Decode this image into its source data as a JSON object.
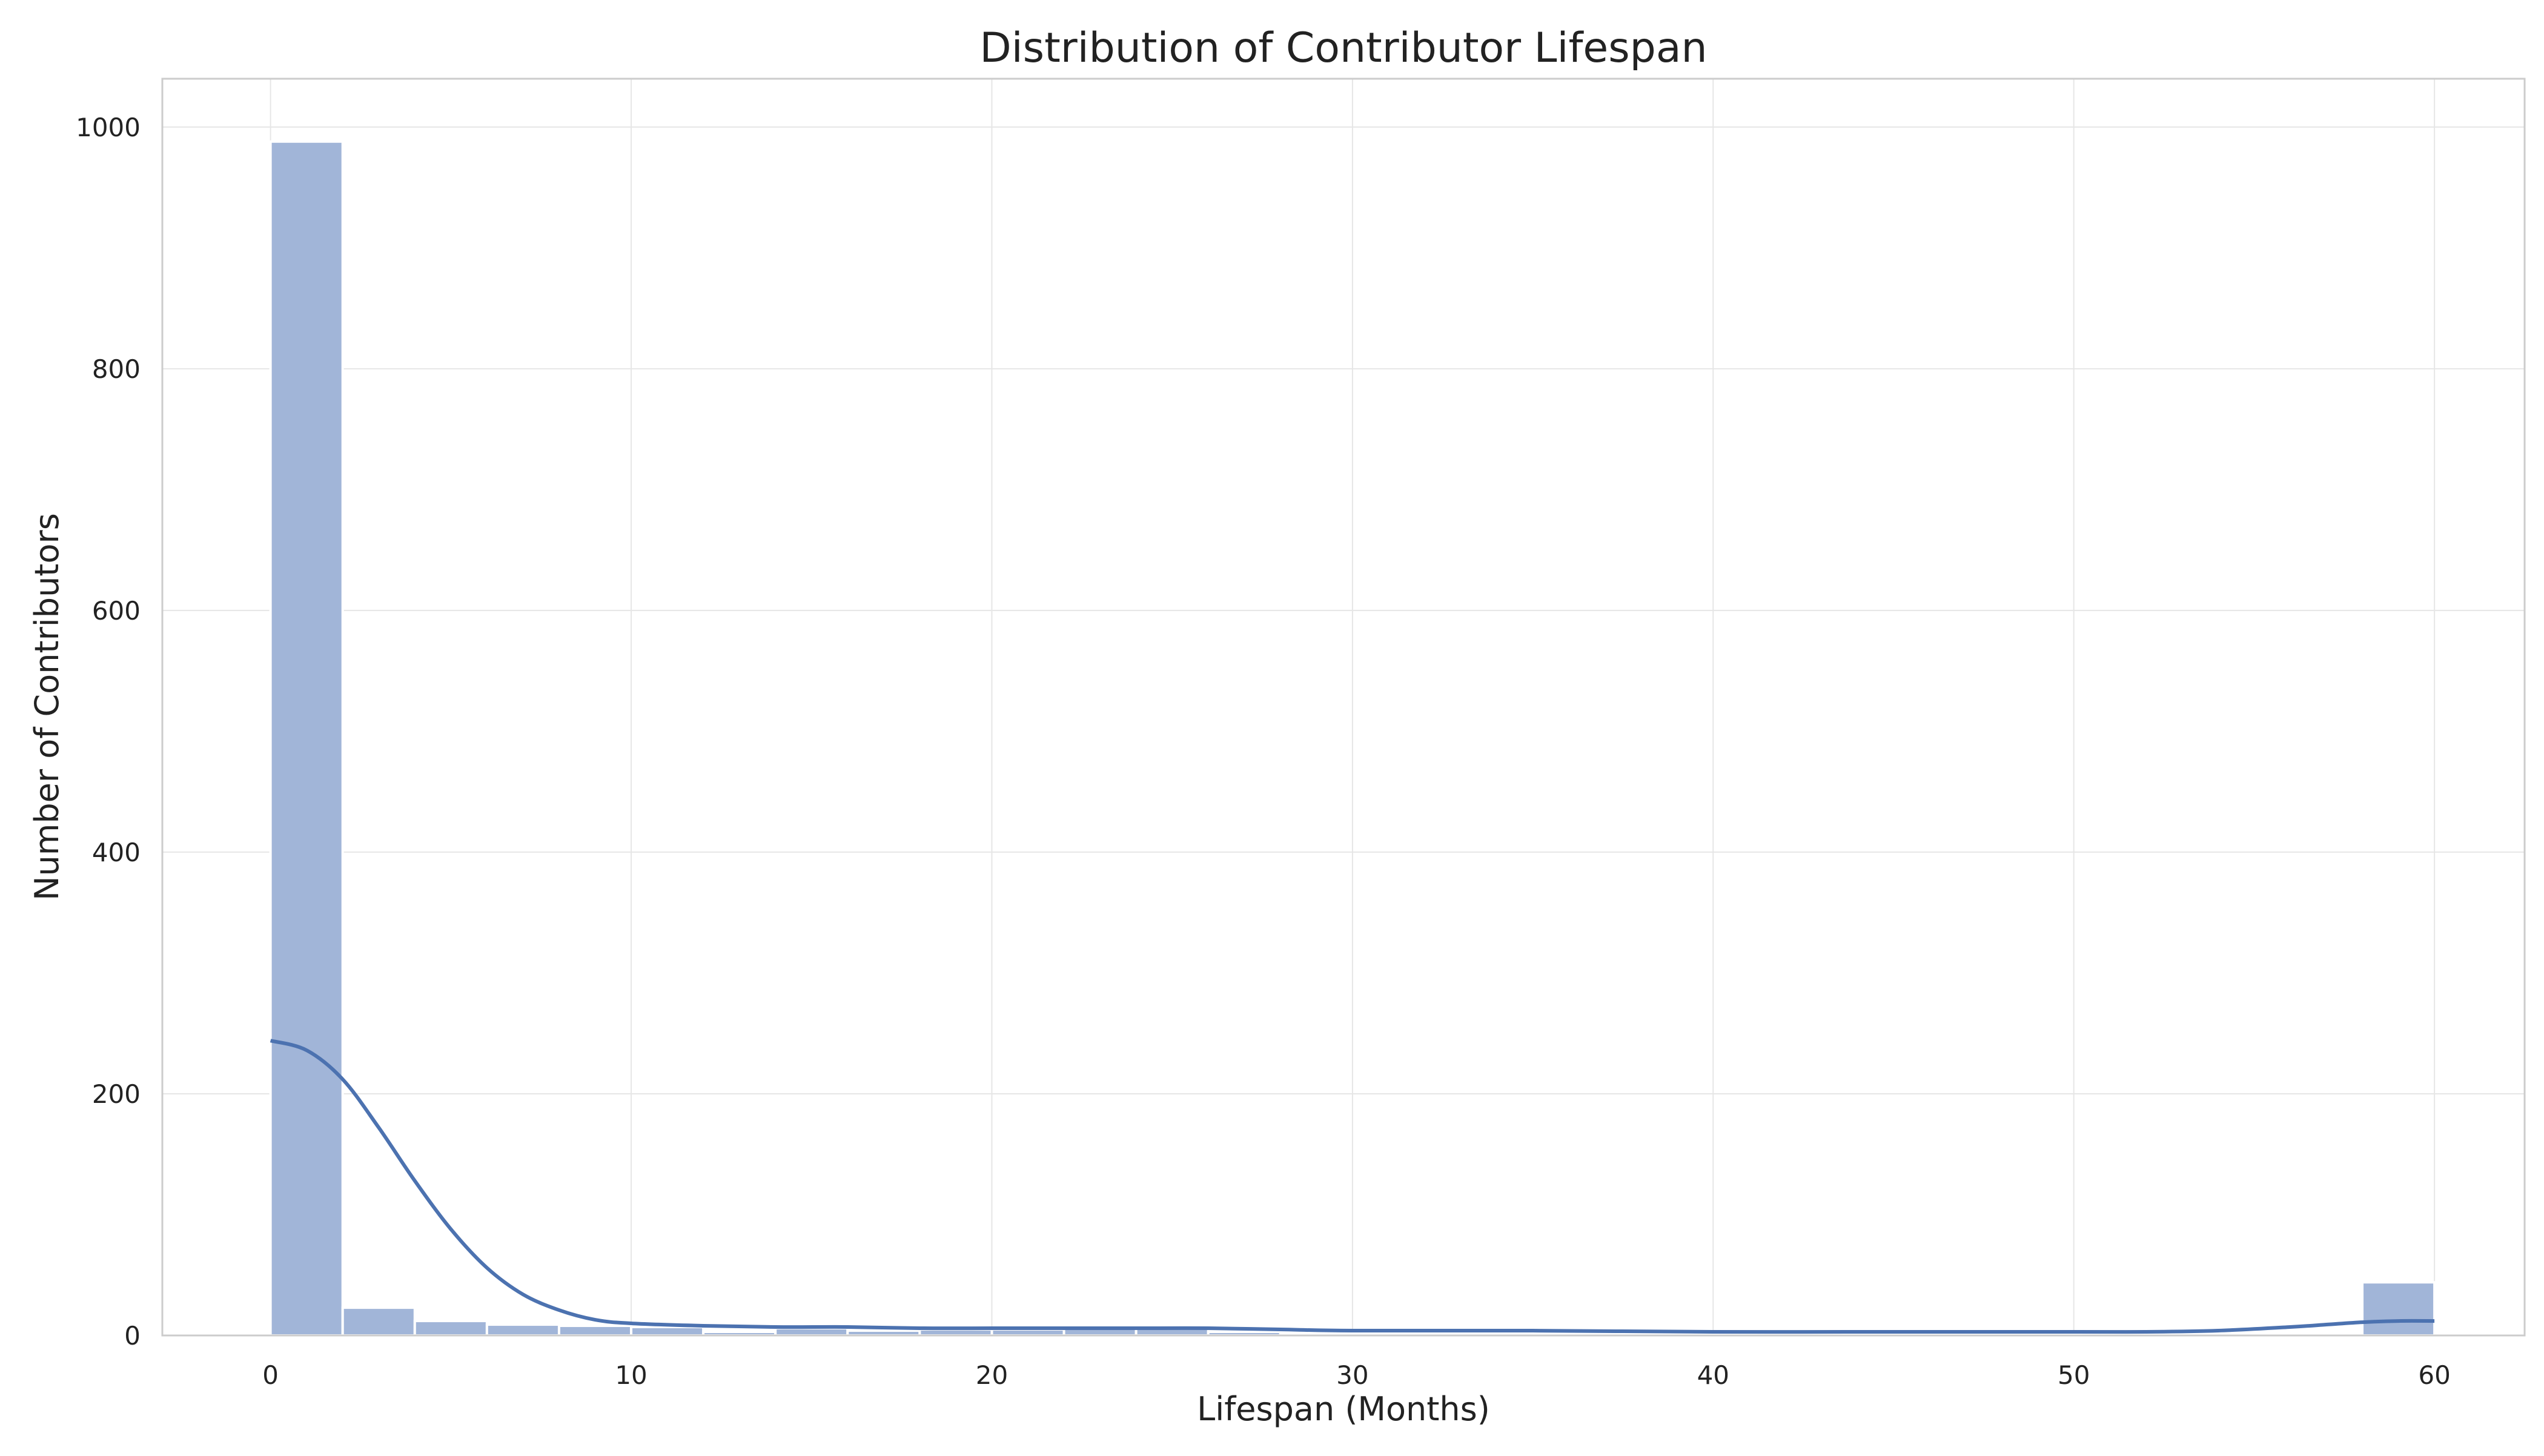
{
  "chart_data": {
    "type": "bar",
    "title": "Distribution of Contributor Lifespan",
    "xlabel": "Lifespan (Months)",
    "ylabel": "Number of Contributors",
    "xlim": [
      -3,
      62.5
    ],
    "ylim": [
      0,
      1040
    ],
    "x_ticks": [
      0,
      10,
      20,
      30,
      40,
      50,
      60
    ],
    "y_ticks": [
      0,
      200,
      400,
      600,
      800,
      1000
    ],
    "grid": true,
    "legend": "none",
    "bar_color": "#a1b5d8",
    "bar_edge_color": "#ffffff",
    "kde_color": "#4c72b0",
    "bins": [
      {
        "x0": 0,
        "x1": 2,
        "count": 988
      },
      {
        "x0": 2,
        "x1": 4,
        "count": 23
      },
      {
        "x0": 4,
        "x1": 6,
        "count": 12
      },
      {
        "x0": 6,
        "x1": 8,
        "count": 9
      },
      {
        "x0": 8,
        "x1": 10,
        "count": 8
      },
      {
        "x0": 10,
        "x1": 12,
        "count": 7
      },
      {
        "x0": 12,
        "x1": 14,
        "count": 3
      },
      {
        "x0": 14,
        "x1": 16,
        "count": 6
      },
      {
        "x0": 16,
        "x1": 18,
        "count": 4
      },
      {
        "x0": 18,
        "x1": 20,
        "count": 5
      },
      {
        "x0": 20,
        "x1": 22,
        "count": 5
      },
      {
        "x0": 22,
        "x1": 24,
        "count": 6
      },
      {
        "x0": 24,
        "x1": 26,
        "count": 8
      },
      {
        "x0": 26,
        "x1": 28,
        "count": 3
      },
      {
        "x0": 28,
        "x1": 30,
        "count": 2
      },
      {
        "x0": 30,
        "x1": 32,
        "count": 2
      },
      {
        "x0": 32,
        "x1": 34,
        "count": 2
      },
      {
        "x0": 34,
        "x1": 36,
        "count": 2
      },
      {
        "x0": 36,
        "x1": 38,
        "count": 2
      },
      {
        "x0": 38,
        "x1": 40,
        "count": 1
      },
      {
        "x0": 40,
        "x1": 42,
        "count": 1
      },
      {
        "x0": 42,
        "x1": 44,
        "count": 1
      },
      {
        "x0": 44,
        "x1": 46,
        "count": 1
      },
      {
        "x0": 46,
        "x1": 48,
        "count": 1
      },
      {
        "x0": 48,
        "x1": 50,
        "count": 1
      },
      {
        "x0": 50,
        "x1": 52,
        "count": 1
      },
      {
        "x0": 52,
        "x1": 54,
        "count": 1
      },
      {
        "x0": 54,
        "x1": 56,
        "count": 1
      },
      {
        "x0": 56,
        "x1": 58,
        "count": 2
      },
      {
        "x0": 58,
        "x1": 60,
        "count": 44
      }
    ],
    "kde_curve": {
      "x": [
        0,
        1,
        2,
        3,
        4,
        5,
        6,
        7,
        8,
        9,
        10,
        12,
        14,
        16,
        18,
        20,
        22,
        24,
        26,
        28,
        30,
        35,
        40,
        45,
        50,
        52,
        54,
        56,
        57,
        58,
        59,
        60
      ],
      "y": [
        244,
        236,
        212,
        172,
        128,
        88,
        56,
        34,
        21,
        13,
        10,
        8,
        7,
        7,
        6,
        6,
        6,
        6,
        6,
        5,
        4,
        4,
        3,
        3,
        3,
        3,
        4,
        7,
        9,
        11,
        12,
        12
      ]
    }
  }
}
